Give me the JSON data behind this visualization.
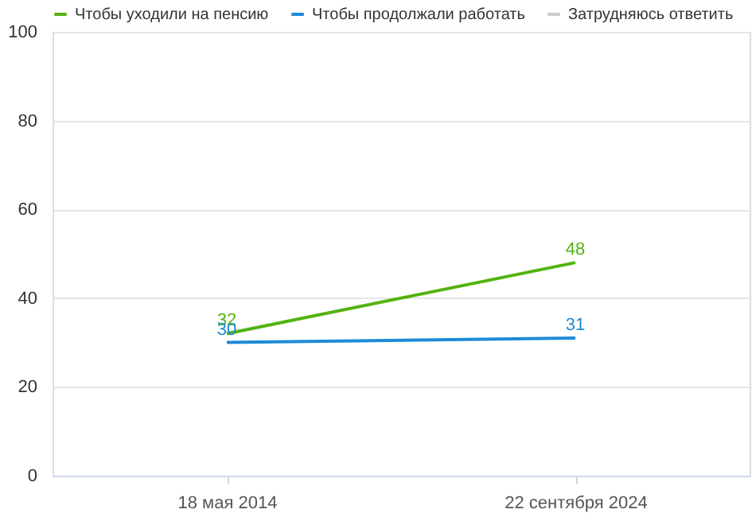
{
  "chart_data": {
    "type": "line",
    "categories": [
      "18 мая 2014",
      "22 сентября 2024"
    ],
    "series": [
      {
        "name": "Чтобы уходили на пенсию",
        "color": "#52b30f",
        "values": [
          32,
          48
        ]
      },
      {
        "name": "Чтобы продолжали работать",
        "color": "#1f8ad8",
        "values": [
          30,
          31
        ]
      },
      {
        "name": "Затрудняюсь ответить",
        "color": "#cccccc",
        "values": [
          null,
          null
        ]
      }
    ],
    "ylim": [
      0,
      100
    ],
    "yticks": [
      0,
      20,
      40,
      60,
      80,
      100
    ],
    "grid": "y",
    "legend": "top",
    "data_labels": true,
    "marker": "none"
  }
}
